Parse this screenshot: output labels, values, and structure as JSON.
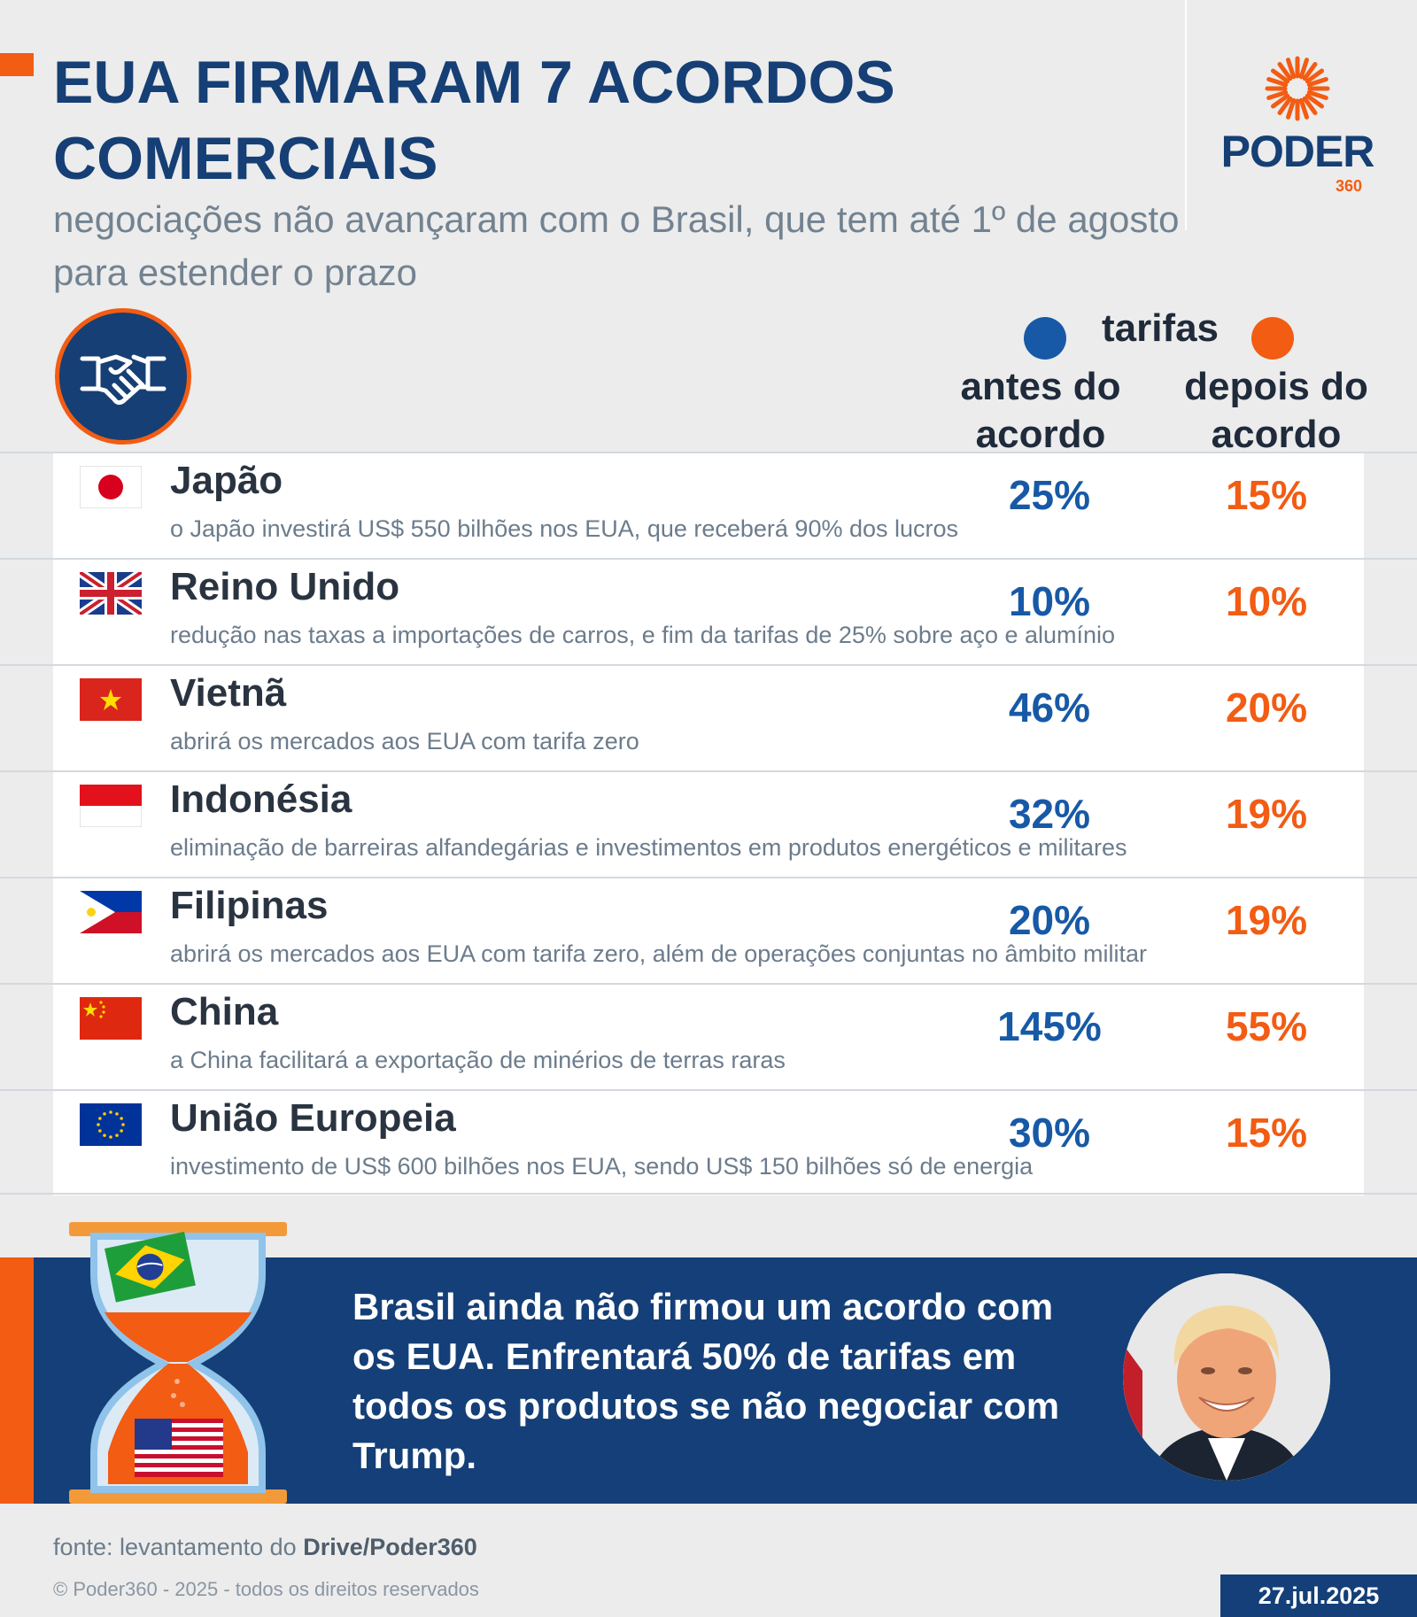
{
  "header": {
    "title": "EUA FIRMARAM 7 ACORDOS COMERCIAIS",
    "subtitle": "negociações não avançaram com o Brasil, que tem até 1º de agosto para estender o prazo"
  },
  "logo": {
    "word": "PODER",
    "number": "360"
  },
  "columns": {
    "group_label": "tarifas",
    "before_label": "antes do acordo",
    "after_label": "depois do acordo"
  },
  "colors": {
    "navy": "#153f75",
    "blue": "#1759a6",
    "orange": "#f25c13"
  },
  "icons": [
    "handshake-icon",
    "sun-logo-icon",
    "hourglass-icon"
  ],
  "rows": [
    {
      "country": "Japão",
      "note": "o Japão investirá US$ 550 bilhões nos EUA, que receberá 90% dos lucros",
      "before": "25%",
      "after": "15%",
      "flag": "japan-flag"
    },
    {
      "country": "Reino Unido",
      "note": "redução nas taxas a importações de carros, e fim da tarifas de 25% sobre aço e alumínio",
      "before": "10%",
      "after": "10%",
      "flag": "uk-flag"
    },
    {
      "country": "Vietnã",
      "note": "abrirá os mercados aos EUA com tarifa zero",
      "before": "46%",
      "after": "20%",
      "flag": "vietnam-flag"
    },
    {
      "country": "Indonésia",
      "note": "eliminação de barreiras alfandegárias e investimentos em produtos energéticos e militares",
      "before": "32%",
      "after": "19%",
      "flag": "indonesia-flag"
    },
    {
      "country": "Filipinas",
      "note": "abrirá os mercados aos EUA com tarifa zero, além de operações conjuntas no âmbito militar",
      "before": "20%",
      "after": "19%",
      "flag": "philippines-flag"
    },
    {
      "country": "China",
      "note": "a China facilitará a exportação de minérios de terras raras",
      "before": "145%",
      "after": "55%",
      "flag": "china-flag"
    },
    {
      "country": "União Europeia",
      "note": "investimento de US$ 600 bilhões nos EUA, sendo US$ 150 bilhões só de energia",
      "before": "30%",
      "after": "15%",
      "flag": "eu-flag"
    }
  ],
  "banner": {
    "text": "Brasil ainda não firmou um acordo com os EUA. Enfrentará 50% de tarifas em todos os produtos se não negociar com Trump."
  },
  "footer": {
    "source_prefix": "fonte: levantamento do ",
    "source_bold": "Drive/Poder360",
    "copyright": "© Poder360 - 2025 - todos os direitos reservados",
    "date": "27.jul.2025"
  }
}
